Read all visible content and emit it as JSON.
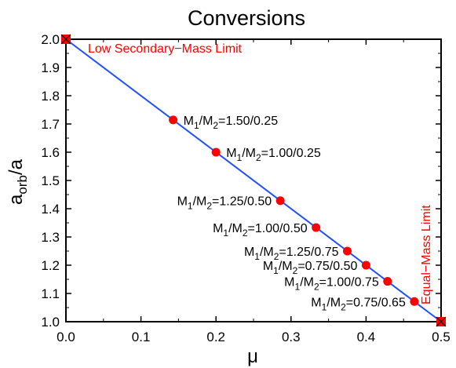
{
  "chart_data": {
    "type": "scatter",
    "title": "Conversions",
    "xlabel": "μ",
    "ylabel": {
      "main": "a",
      "sub": "orb",
      "suffix": "/a"
    },
    "xlim": [
      0.0,
      0.5
    ],
    "ylim": [
      1.0,
      2.0
    ],
    "x_ticks": [
      "0.0",
      "0.1",
      "0.2",
      "0.3",
      "0.4",
      "0.5"
    ],
    "y_ticks": [
      "1.0",
      "1.1",
      "1.2",
      "1.3",
      "1.4",
      "1.5",
      "1.6",
      "1.7",
      "1.8",
      "1.9",
      "2.0"
    ],
    "grid": false,
    "line": {
      "x": [
        0.0,
        0.5
      ],
      "y": [
        2.0,
        1.0
      ],
      "color": "#1f4fff"
    },
    "limits": [
      {
        "x": 0.0,
        "y": 2.0,
        "label": "Low Secondary−Mass Limit",
        "orientation": "horizontal"
      },
      {
        "x": 0.5,
        "y": 1.0,
        "label": "Equal−Mass Limit",
        "orientation": "vertical"
      }
    ],
    "points": [
      {
        "x": 0.1429,
        "y": 1.7143,
        "label": {
          "pre": "M",
          "s1": "1",
          "mid": "/M",
          "s2": "2",
          "post": "=1.50/0.25"
        },
        "side": "right"
      },
      {
        "x": 0.2,
        "y": 1.6,
        "label": {
          "pre": "M",
          "s1": "1",
          "mid": "/M",
          "s2": "2",
          "post": "=1.00/0.25"
        },
        "side": "right"
      },
      {
        "x": 0.2857,
        "y": 1.4286,
        "label": {
          "pre": "M",
          "s1": "1",
          "mid": "/M",
          "s2": "2",
          "post": "=1.25/0.50"
        },
        "side": "left"
      },
      {
        "x": 0.3333,
        "y": 1.3333,
        "label": {
          "pre": "M",
          "s1": "1",
          "mid": "/M",
          "s2": "2",
          "post": "=1.00/0.50"
        },
        "side": "left"
      },
      {
        "x": 0.375,
        "y": 1.25,
        "label": {
          "pre": "M",
          "s1": "1",
          "mid": "/M",
          "s2": "2",
          "post": "=1.25/0.75"
        },
        "side": "left"
      },
      {
        "x": 0.4,
        "y": 1.2,
        "label": {
          "pre": "M",
          "s1": "1",
          "mid": "/M",
          "s2": "2",
          "post": "=0.75/0.50"
        },
        "side": "left"
      },
      {
        "x": 0.4286,
        "y": 1.1429,
        "label": {
          "pre": "M",
          "s1": "1",
          "mid": "/M",
          "s2": "2",
          "post": "=1.00/0.75"
        },
        "side": "left"
      },
      {
        "x": 0.4643,
        "y": 1.0714,
        "label": {
          "pre": "M",
          "s1": "1",
          "mid": "/M",
          "s2": "2",
          "post": "=0.75/0.65"
        },
        "side": "left"
      }
    ],
    "colors": {
      "line": "#1f4fff",
      "points": "#ff0000",
      "limit_markers": "#ff0000",
      "limit_labels": "#ff0000"
    }
  }
}
